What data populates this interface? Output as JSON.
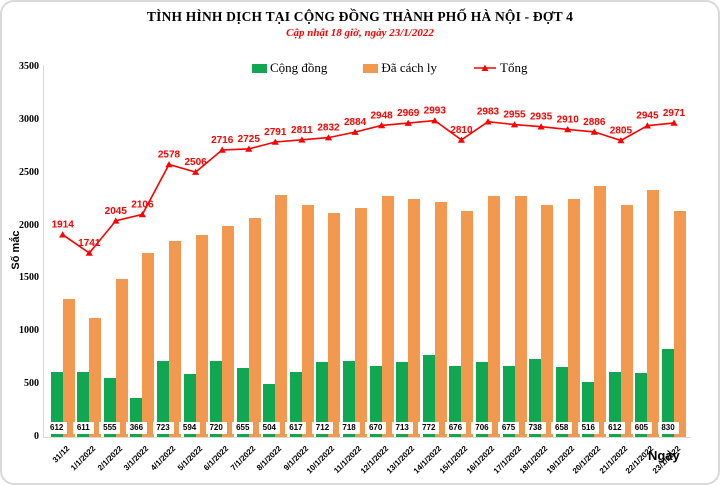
{
  "title": "TÌNH HÌNH DỊCH TẠI CỘNG ĐỒNG THÀNH PHỐ HÀ NỘI - ĐỢT 4",
  "subtitle": "Cập nhật 18 giờ, ngày 23/1/2022",
  "ylabel": "Số mắc",
  "xlabel": "Ngày",
  "colors": {
    "green": "#0FA751",
    "orange": "#F2994F",
    "red": "#FF0000"
  },
  "legend": {
    "items": [
      {
        "label": "Cộng đồng",
        "color": "#0FA751",
        "type": "bar"
      },
      {
        "label": "Đã cách ly",
        "color": "#F2994F",
        "type": "bar"
      },
      {
        "label": "Tổng",
        "color": "#FF0000",
        "type": "line"
      }
    ]
  },
  "chart_data": {
    "type": "bar",
    "title": "TÌNH HÌNH DỊCH TẠI CỘNG ĐỒNG THÀNH PHỐ HÀ NỘI - ĐỢT 4",
    "subtitle": "Cập nhật 18 giờ, ngày 23/1/2022",
    "xlabel": "Ngày",
    "ylabel": "Số mắc",
    "ylim": [
      0,
      3500
    ],
    "yticks": [
      0,
      500,
      1000,
      1500,
      2000,
      2500,
      3000,
      3500
    ],
    "grid": false,
    "legend_position": "top",
    "categories": [
      "31/12",
      "1/1/2022",
      "2/1/2022",
      "3/1/2022",
      "4/1/2022",
      "5/1/2022",
      "6/1/2022",
      "7/1/2022",
      "8/1/2022",
      "9/1/2022",
      "10/1/2022",
      "11/1/2022",
      "12/1/2022",
      "13/1/2022",
      "14/1/2022",
      "15/1/2022",
      "16/1/2022",
      "17/1/2022",
      "18/1/2022",
      "19/1/2022",
      "20/1/2022",
      "21/1/2022",
      "22/1/2022",
      "23/1/2022"
    ],
    "series": [
      {
        "name": "Cộng đồng",
        "type": "bar",
        "color": "#0FA751",
        "values": [
          612,
          611,
          555,
          366,
          723,
          594,
          720,
          655,
          504,
          617,
          712,
          718,
          670,
          713,
          772,
          676,
          706,
          675,
          738,
          658,
          516,
          612,
          605,
          830
        ],
        "data_labels": true
      },
      {
        "name": "Đã cách ly",
        "type": "bar",
        "color": "#F2994F",
        "values": [
          1302,
          1130,
          1490,
          1740,
          1855,
          1912,
          1996,
          2070,
          2287,
          2194,
          2120,
          2166,
          2278,
          2256,
          2221,
          2134,
          2277,
          2280,
          2197,
          2252,
          2370,
          2193,
          2340,
          2141
        ],
        "data_labels": false
      },
      {
        "name": "Tổng",
        "type": "line",
        "color": "#FF0000",
        "marker": "triangle",
        "values": [
          1914,
          1741,
          2045,
          2106,
          2578,
          2506,
          2716,
          2725,
          2791,
          2811,
          2832,
          2884,
          2948,
          2969,
          2993,
          2810,
          2983,
          2955,
          2935,
          2910,
          2886,
          2805,
          2945,
          2971
        ],
        "data_labels": true
      }
    ]
  }
}
